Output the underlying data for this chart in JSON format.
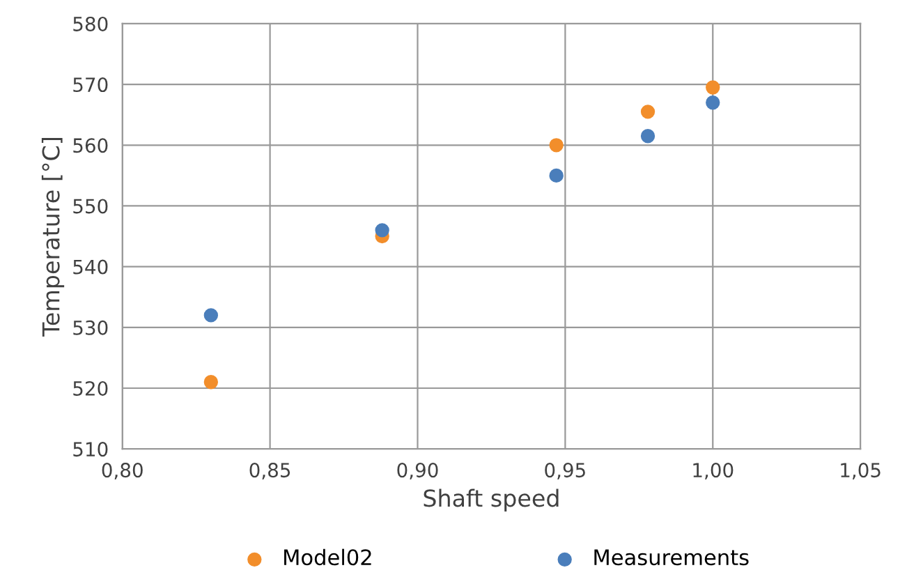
{
  "chart_data": {
    "type": "scatter",
    "xlabel": "Shaft speed",
    "ylabel": "Temperature [°C]",
    "series": [
      {
        "name": "Model02",
        "color": "#f28e2b",
        "x": [
          0.83,
          0.888,
          0.947,
          0.978,
          1.0
        ],
        "values": [
          521,
          545,
          560,
          565.5,
          569.5
        ]
      },
      {
        "name": "Measurements",
        "color": "#4a7ebb",
        "x": [
          0.83,
          0.888,
          0.947,
          0.978,
          1.0
        ],
        "values": [
          532,
          546,
          555,
          561.5,
          567
        ]
      }
    ],
    "xlim": [
      0.8,
      1.05
    ],
    "xticks": [
      {
        "value": 0.8,
        "label": "0,80"
      },
      {
        "value": 0.85,
        "label": "0,85"
      },
      {
        "value": 0.9,
        "label": "0,90"
      },
      {
        "value": 0.95,
        "label": "0,95"
      },
      {
        "value": 1.0,
        "label": "1,00"
      },
      {
        "value": 1.05,
        "label": "1,05"
      }
    ],
    "ylim": [
      510,
      580
    ],
    "yticks": [
      510,
      520,
      530,
      540,
      550,
      560,
      570,
      580
    ],
    "grid": true,
    "legend": "bottom",
    "marker": "circle"
  }
}
